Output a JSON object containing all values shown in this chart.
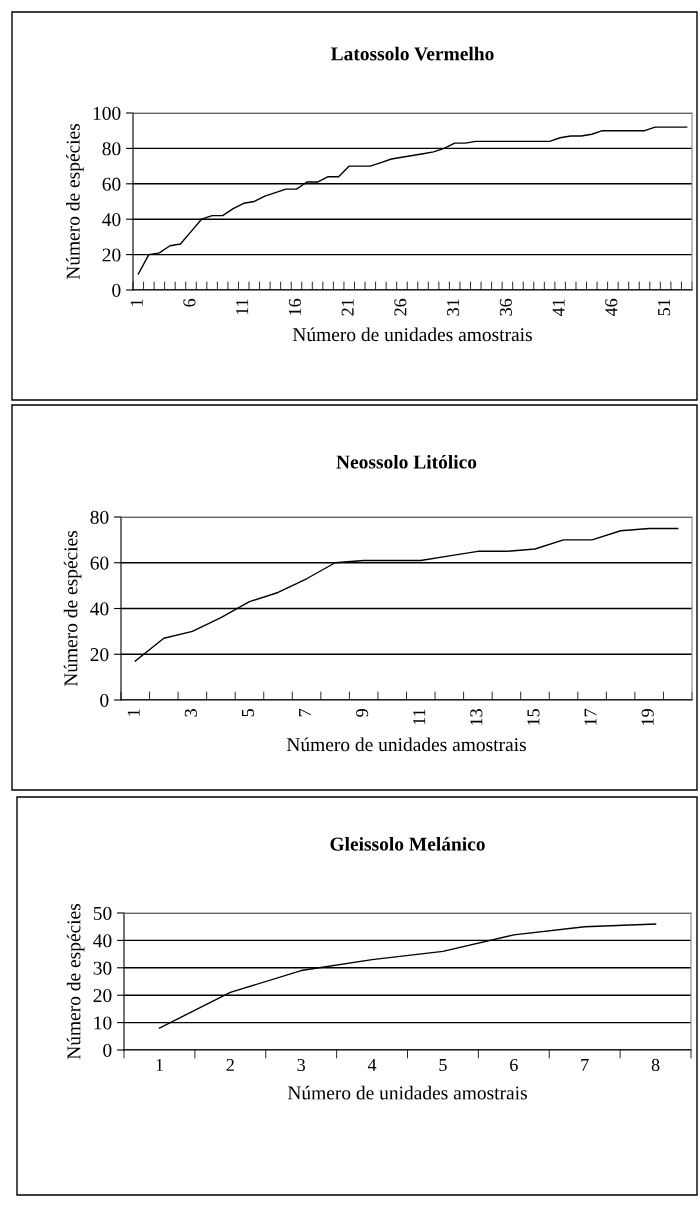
{
  "chart_data": [
    {
      "type": "line",
      "title": "Latossolo Vermelho",
      "xlabel": "Número de unidades amostrais",
      "ylabel": "Número de espécies",
      "categories": [
        "1",
        null,
        null,
        null,
        null,
        "6",
        null,
        null,
        null,
        null,
        "11",
        null,
        null,
        null,
        null,
        "16",
        null,
        null,
        null,
        null,
        "21",
        null,
        null,
        null,
        null,
        "26",
        null,
        null,
        null,
        null,
        "31",
        null,
        null,
        null,
        null,
        "36",
        null,
        null,
        null,
        null,
        "41",
        null,
        null,
        null,
        null,
        "46",
        null,
        null,
        null,
        null,
        "51",
        null,
        null
      ],
      "series": [
        {
          "color": "#000000",
          "values": [
            9,
            20,
            21,
            25,
            26,
            33,
            40,
            42,
            42,
            46,
            49,
            50,
            53,
            55,
            57,
            57,
            61,
            61,
            64,
            64,
            70,
            70,
            70,
            72,
            74,
            75,
            76,
            77,
            78,
            80,
            83,
            83,
            84,
            84,
            84,
            84,
            84,
            84,
            84,
            84,
            86,
            87,
            87,
            88,
            90,
            90,
            90,
            90,
            90,
            92,
            92,
            92,
            92
          ]
        }
      ],
      "ylim": [
        0,
        100
      ],
      "yticks": [
        0,
        20,
        40,
        60,
        80,
        100
      ],
      "grid": "y",
      "marker": "none",
      "line_style": "solid"
    },
    {
      "type": "line",
      "title": "Neossolo Litólico",
      "xlabel": "Número de unidades amostrais",
      "ylabel": "Número de espécies",
      "categories": [
        "1",
        null,
        "3",
        null,
        "5",
        null,
        "7",
        null,
        "9",
        null,
        "11",
        null,
        "13",
        null,
        "15",
        null,
        "17",
        null,
        "19",
        null
      ],
      "series": [
        {
          "color": "#000000",
          "values": [
            17,
            27,
            30,
            36,
            43,
            47,
            53,
            60,
            61,
            61,
            61,
            63,
            65,
            65,
            66,
            70,
            70,
            74,
            75,
            75
          ]
        }
      ],
      "ylim": [
        0,
        80
      ],
      "yticks": [
        0,
        20,
        40,
        60,
        80
      ],
      "grid": "y",
      "marker": "none",
      "line_style": "solid"
    },
    {
      "type": "line",
      "title": "Gleissolo Melánico",
      "xlabel": "Número de unidades amostrais",
      "ylabel": "Número de espécies",
      "categories": [
        "1",
        "2",
        "3",
        "4",
        "5",
        "6",
        "7",
        "8"
      ],
      "series": [
        {
          "color": "#000000",
          "values": [
            8,
            21,
            29,
            33,
            36,
            42,
            45,
            46
          ]
        }
      ],
      "ylim": [
        0,
        50
      ],
      "yticks": [
        0,
        10,
        20,
        30,
        40,
        50
      ],
      "grid": "y",
      "marker": "none",
      "line_style": "solid"
    }
  ]
}
